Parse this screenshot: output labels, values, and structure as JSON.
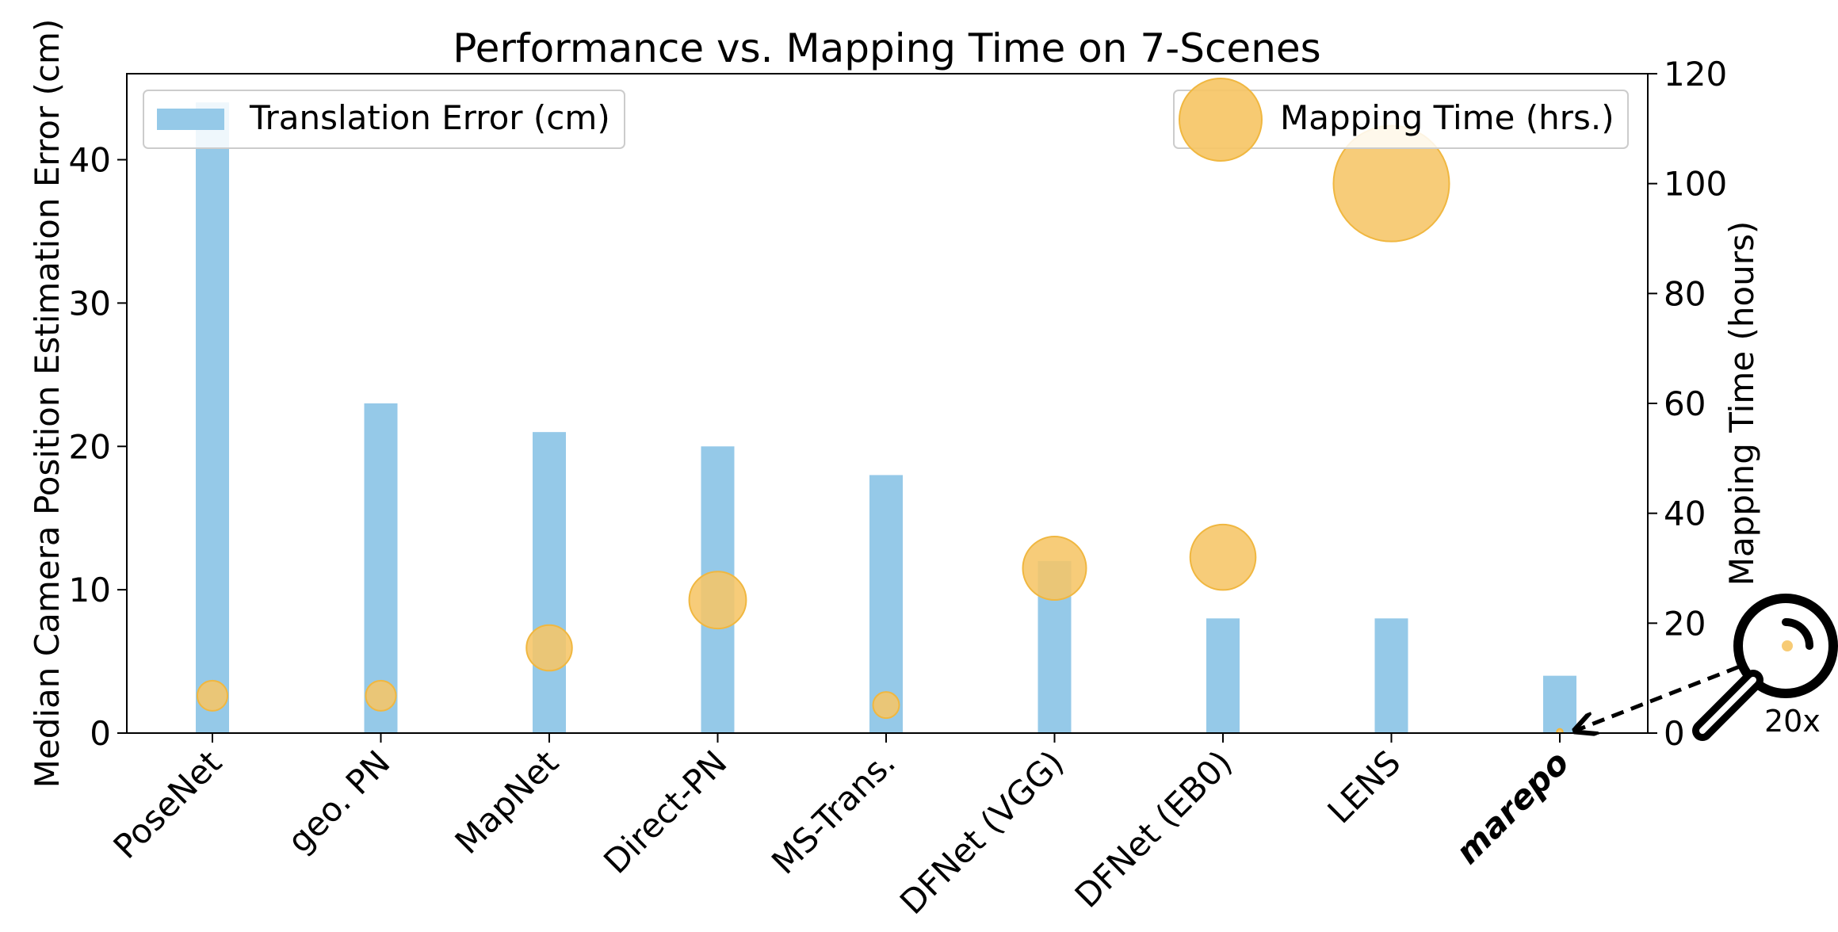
{
  "chart_data": {
    "type": "bar",
    "title": "Performance vs. Mapping Time on 7-Scenes",
    "xlabel": "",
    "ylabel": "Median Camera Position Estimation Error (cm)",
    "y2label": "Mapping Time (hours)",
    "categories": [
      "PoseNet",
      "geo. PN",
      "MapNet",
      "Direct-PN",
      "MS-Trans.",
      "DFNet (VGG)",
      "DFNet (EB0)",
      "LENS",
      "marepo"
    ],
    "highlight_category": "marepo",
    "ylim": [
      0,
      46
    ],
    "y2lim": [
      0,
      120
    ],
    "yticks": [
      0,
      10,
      20,
      30,
      40
    ],
    "y2ticks": [
      0,
      20,
      40,
      60,
      80,
      100,
      120
    ],
    "grid": false,
    "series": [
      {
        "name": "Translation Error (cm)",
        "type": "bar",
        "axis": "left",
        "color": "#95c9e8",
        "values": [
          44,
          23,
          21,
          20,
          18,
          12,
          8,
          8,
          4
        ]
      },
      {
        "name": "Mapping Time (hrs.)",
        "type": "bubble",
        "axis": "right",
        "color": "#f6c566",
        "values": [
          6.8,
          6.8,
          15.5,
          24.2,
          5.1,
          30,
          32,
          100,
          0.25
        ]
      }
    ],
    "legend": [
      {
        "label": "Translation Error (cm)",
        "placement": "top-left"
      },
      {
        "label": "Mapping Time (hrs.)",
        "placement": "top-right"
      }
    ],
    "annotation": {
      "text": "20x",
      "icon": "magnifier-icon"
    }
  }
}
